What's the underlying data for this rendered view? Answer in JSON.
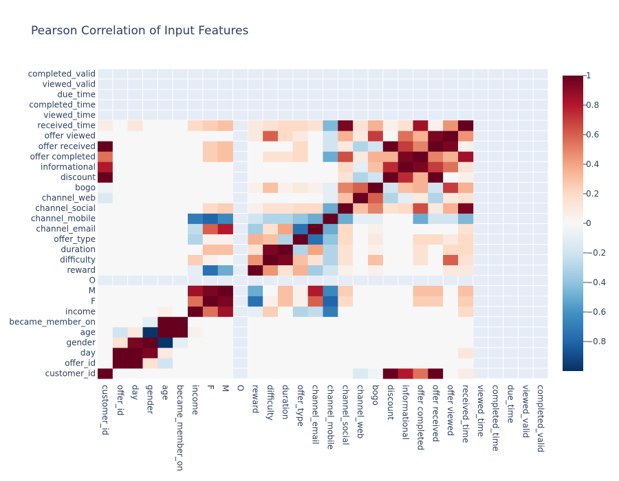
{
  "chart_data": {
    "type": "heatmap",
    "title": "Pearson Correlation of Input Features",
    "features": [
      "customer_id",
      "offer_id",
      "day",
      "gender",
      "age",
      "became_member_on",
      "income",
      "F",
      "M",
      "O",
      "reward",
      "difficulty",
      "duration",
      "offer_type",
      "channel_email",
      "channel_mobile",
      "channel_social",
      "channel_web",
      "bogo",
      "discount",
      "informational",
      "offer completed",
      "offer received",
      "offer viewed",
      "received_time",
      "viewed_time",
      "completed_time",
      "due_time",
      "viewed_valid",
      "completed_valid"
    ],
    "empty_features": [
      "O",
      "viewed_time",
      "completed_time",
      "due_time",
      "viewed_valid",
      "completed_valid"
    ],
    "pairs": [
      [
        "customer_id",
        "discount",
        1.0
      ],
      [
        "customer_id",
        "informational",
        0.8
      ],
      [
        "customer_id",
        "offer completed",
        0.55
      ],
      [
        "customer_id",
        "offer received",
        1.0
      ],
      [
        "customer_id",
        "bogo",
        -0.05
      ],
      [
        "customer_id",
        "channel_web",
        -0.15
      ],
      [
        "customer_id",
        "received_time",
        0.08
      ],
      [
        "offer_id",
        "day",
        1.0
      ],
      [
        "offer_id",
        "gender",
        0.15
      ],
      [
        "offer_id",
        "age",
        -0.2
      ],
      [
        "day",
        "gender",
        0.95
      ],
      [
        "day",
        "age",
        0.1
      ],
      [
        "day",
        "received_time",
        0.12
      ],
      [
        "gender",
        "age",
        -0.98
      ],
      [
        "gender",
        "became_member_on",
        -0.1
      ],
      [
        "age",
        "became_member_on",
        1.0
      ],
      [
        "age",
        "income",
        0.05
      ],
      [
        "income",
        "F",
        0.55
      ],
      [
        "income",
        "M",
        0.85
      ],
      [
        "income",
        "channel_mobile",
        -0.7
      ],
      [
        "income",
        "channel_email",
        -0.25
      ],
      [
        "income",
        "offer_type",
        -0.3
      ],
      [
        "income",
        "difficulty",
        0.25
      ],
      [
        "income",
        "reward",
        -0.1
      ],
      [
        "income",
        "received_time",
        0.2
      ],
      [
        "F",
        "M",
        0.95
      ],
      [
        "F",
        "reward",
        -0.75
      ],
      [
        "F",
        "difficulty",
        0.05
      ],
      [
        "F",
        "duration",
        0.3
      ],
      [
        "F",
        "offer_type",
        0.05
      ],
      [
        "F",
        "channel_email",
        0.6
      ],
      [
        "F",
        "channel_mobile",
        -0.8
      ],
      [
        "F",
        "channel_social",
        0.2
      ],
      [
        "F",
        "offer completed",
        0.25
      ],
      [
        "F",
        "offer received",
        0.25
      ],
      [
        "F",
        "received_time",
        0.25
      ],
      [
        "M",
        "reward",
        -0.5
      ],
      [
        "M",
        "duration",
        0.3
      ],
      [
        "M",
        "offer_type",
        0.05
      ],
      [
        "M",
        "channel_email",
        0.8
      ],
      [
        "M",
        "channel_mobile",
        -0.65
      ],
      [
        "M",
        "channel_social",
        0.25
      ],
      [
        "M",
        "offer completed",
        0.3
      ],
      [
        "M",
        "offer received",
        0.3
      ],
      [
        "M",
        "received_time",
        0.3
      ],
      [
        "reward",
        "difficulty",
        0.45
      ],
      [
        "reward",
        "duration",
        0.15
      ],
      [
        "reward",
        "offer_type",
        0.35
      ],
      [
        "reward",
        "channel_email",
        -0.35
      ],
      [
        "reward",
        "channel_mobile",
        -0.2
      ],
      [
        "reward",
        "channel_social",
        0.05
      ],
      [
        "reward",
        "bogo",
        0.05
      ],
      [
        "reward",
        "offer viewed",
        0.1
      ],
      [
        "reward",
        "received_time",
        0.1
      ],
      [
        "difficulty",
        "duration",
        0.95
      ],
      [
        "difficulty",
        "offer_type",
        0.3
      ],
      [
        "difficulty",
        "channel_email",
        0.15
      ],
      [
        "difficulty",
        "channel_mobile",
        -0.3
      ],
      [
        "difficulty",
        "channel_social",
        0.15
      ],
      [
        "difficulty",
        "bogo",
        0.3
      ],
      [
        "difficulty",
        "offer completed",
        0.15
      ],
      [
        "difficulty",
        "offer viewed",
        0.6
      ],
      [
        "difficulty",
        "received_time",
        0.15
      ],
      [
        "duration",
        "offer_type",
        -0.3
      ],
      [
        "duration",
        "channel_email",
        0.4
      ],
      [
        "duration",
        "channel_mobile",
        -0.3
      ],
      [
        "duration",
        "channel_social",
        0.15
      ],
      [
        "duration",
        "bogo",
        0.05
      ],
      [
        "duration",
        "offer completed",
        0.15
      ],
      [
        "duration",
        "offer viewed",
        0.2
      ],
      [
        "duration",
        "received_time",
        0.2
      ],
      [
        "offer_type",
        "channel_email",
        -0.75
      ],
      [
        "offer_type",
        "channel_mobile",
        -0.4
      ],
      [
        "offer_type",
        "channel_social",
        0.2
      ],
      [
        "offer_type",
        "bogo",
        0.1
      ],
      [
        "offer_type",
        "offer completed",
        0.2
      ],
      [
        "offer_type",
        "offer received",
        0.2
      ],
      [
        "offer_type",
        "offer viewed",
        0.1
      ],
      [
        "offer_type",
        "received_time",
        0.2
      ],
      [
        "channel_email",
        "channel_mobile",
        -0.5
      ],
      [
        "channel_email",
        "channel_social",
        0.2
      ],
      [
        "channel_email",
        "bogo",
        0.05
      ],
      [
        "channel_email",
        "received_time",
        0.15
      ],
      [
        "channel_mobile",
        "channel_social",
        -0.5
      ],
      [
        "channel_mobile",
        "channel_web",
        -0.1
      ],
      [
        "channel_mobile",
        "bogo",
        -0.1
      ],
      [
        "channel_mobile",
        "offer completed",
        -0.5
      ],
      [
        "channel_mobile",
        "offer received",
        -0.2
      ],
      [
        "channel_mobile",
        "offer viewed",
        -0.2
      ],
      [
        "channel_mobile",
        "received_time",
        -0.45
      ],
      [
        "channel_social",
        "channel_web",
        0.3
      ],
      [
        "channel_social",
        "bogo",
        0.5
      ],
      [
        "channel_social",
        "discount",
        0.15
      ],
      [
        "channel_social",
        "informational",
        0.2
      ],
      [
        "channel_social",
        "offer completed",
        0.65
      ],
      [
        "channel_social",
        "offer received",
        0.1
      ],
      [
        "channel_social",
        "offer viewed",
        0.35
      ],
      [
        "channel_social",
        "received_time",
        0.95
      ],
      [
        "channel_web",
        "bogo",
        0.6
      ],
      [
        "channel_web",
        "discount",
        -0.3
      ],
      [
        "channel_web",
        "informational",
        -0.1
      ],
      [
        "channel_web",
        "offer completed",
        0.1
      ],
      [
        "channel_web",
        "offer received",
        -0.3
      ],
      [
        "channel_web",
        "offer viewed",
        0.1
      ],
      [
        "channel_web",
        "received_time",
        0.15
      ],
      [
        "bogo",
        "discount",
        -0.2
      ],
      [
        "bogo",
        "informational",
        0.3
      ],
      [
        "bogo",
        "offer completed",
        0.35
      ],
      [
        "bogo",
        "offer received",
        -0.2
      ],
      [
        "bogo",
        "offer viewed",
        0.7
      ],
      [
        "bogo",
        "received_time",
        0.35
      ],
      [
        "discount",
        "informational",
        0.75
      ],
      [
        "discount",
        "offer completed",
        0.35
      ],
      [
        "discount",
        "offer received",
        1.0
      ],
      [
        "discount",
        "received_time",
        0.05
      ],
      [
        "informational",
        "offer completed",
        0.95
      ],
      [
        "informational",
        "offer received",
        0.7
      ],
      [
        "informational",
        "offer viewed",
        0.55
      ],
      [
        "informational",
        "received_time",
        0.15
      ],
      [
        "offer completed",
        "offer received",
        0.5
      ],
      [
        "offer completed",
        "offer viewed",
        0.35
      ],
      [
        "offer completed",
        "received_time",
        0.85
      ],
      [
        "offer received",
        "offer viewed",
        0.95
      ],
      [
        "offer received",
        "received_time",
        0.05
      ],
      [
        "offer viewed",
        "received_time",
        0.45
      ]
    ],
    "colorbar": {
      "ticks": [
        1,
        0.8,
        0.6,
        0.4,
        0.2,
        0,
        -0.2,
        -0.4,
        -0.6,
        -0.8
      ],
      "tick_labels": [
        "1",
        "0.8",
        "0.6",
        "0.4",
        "0.2",
        "0",
        "−0.2",
        "−0.4",
        "−0.6",
        "−0.8"
      ],
      "range": [
        -1,
        1
      ]
    },
    "colorscale": "RdBu",
    "empty_color": "#e5ecf6"
  }
}
